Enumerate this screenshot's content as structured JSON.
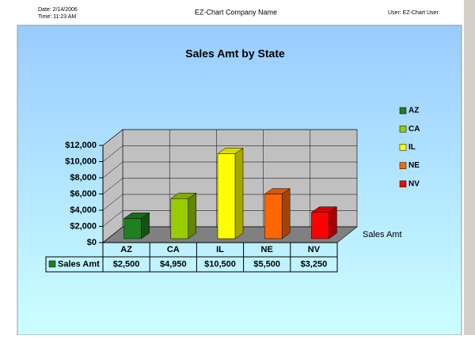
{
  "header": {
    "date": "Date: 2/14/2006",
    "time": "Time: 11:23 AM",
    "company": "EZ-Chart Company Name",
    "user": "User: EZ-Chart User"
  },
  "chart_data": {
    "type": "bar3d",
    "title": "Sales Amt by State",
    "categories": [
      "AZ",
      "CA",
      "IL",
      "NE",
      "NV"
    ],
    "series": [
      {
        "name": "Sales Amt",
        "values": [
          2500,
          4950,
          10500,
          5500,
          3250
        ],
        "value_labels": [
          "$2,500",
          "$4,950",
          "$10,500",
          "$5,500",
          "$3,250"
        ],
        "colors": [
          "#1f7f1f",
          "#99cc00",
          "#ffff00",
          "#ff6600",
          "#ff0000"
        ]
      }
    ],
    "ylim": [
      0,
      12000
    ],
    "yticks": [
      {
        "value": 0,
        "label": "$0"
      },
      {
        "value": 2000,
        "label": "$2,000"
      },
      {
        "value": 4000,
        "label": "$4,000"
      },
      {
        "value": 6000,
        "label": "$6,000"
      },
      {
        "value": 8000,
        "label": "$8,000"
      },
      {
        "value": 10000,
        "label": "$10,000"
      },
      {
        "value": 12000,
        "label": "$12,000"
      }
    ],
    "grid": true,
    "legend": "right",
    "data_table": true
  }
}
